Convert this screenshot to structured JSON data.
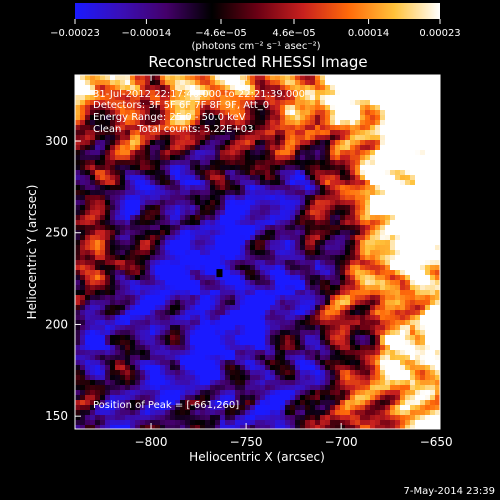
{
  "chart_data": {
    "type": "heatmap",
    "title": "Reconstructed RHESSI Image",
    "xlabel": "Heliocentric X (arcsec)",
    "ylabel": "Heliocentric Y (arcsec)",
    "xlim": [
      -840,
      -648
    ],
    "ylim": [
      143,
      336
    ],
    "x_ticks": [
      -800,
      -750,
      -700,
      -650
    ],
    "x_tick_labels": [
      "−800",
      "−750",
      "−700",
      "−650"
    ],
    "y_ticks": [
      150,
      200,
      250,
      300
    ],
    "y_tick_labels": [
      "150",
      "200",
      "250",
      "300"
    ],
    "colorbar": {
      "min": -0.00023,
      "max": 0.00023,
      "ticks": [
        -0.00023,
        -0.00014,
        -4.6e-05,
        4.6e-05,
        0.00014,
        0.00023
      ],
      "tick_labels": [
        "−0.00023",
        "−0.00014",
        "−4.6e−05",
        "4.6e−05",
        "0.00014",
        "0.00023"
      ],
      "units_label": "(photons cm⁻² s⁻¹ asec⁻²)",
      "colors": [
        "#1a1aff",
        "#3a0fb8",
        "#44006a",
        "#000000",
        "#6b0014",
        "#c8201e",
        "#ff6a0a",
        "#ffc23a",
        "#ffffff"
      ]
    },
    "annotations": {
      "time_range": "31-Jul-2012 22:17:40.000 to 22:21:39.000",
      "detectors": "Detectors: 3F 5F 6F 7F 8F 9F, Att_0",
      "energy_range": "Energy Range: 25.0 - 50.0 keV",
      "method_counts": "Clean     Total counts: 5.22E+03",
      "peak_position": "Position of Peak = [-661,260]"
    },
    "peak": {
      "x": -661,
      "y": 260
    },
    "min_spot": {
      "x": -764,
      "y": 228
    }
  },
  "footer": {
    "date": "7-May-2014 23:39"
  }
}
